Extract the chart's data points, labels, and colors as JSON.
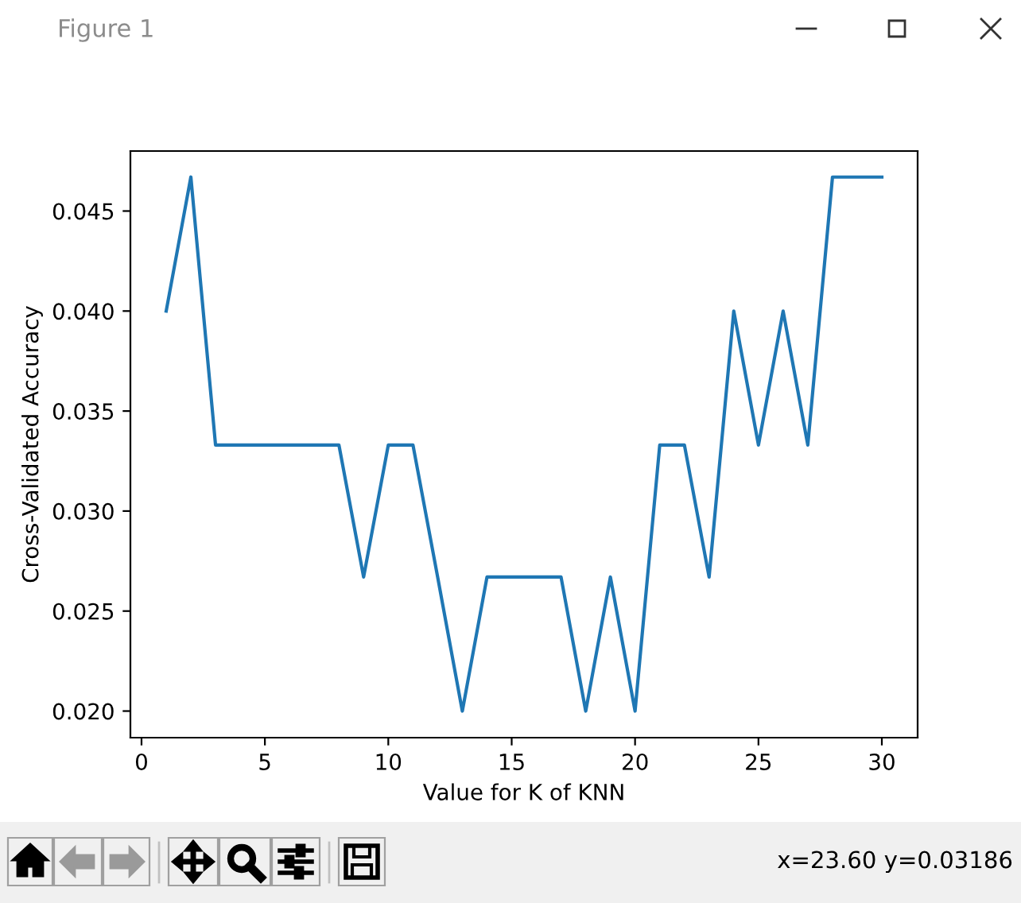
{
  "chart_data": {
    "type": "line",
    "title": "Figure 1",
    "xlabel": "Value for K of KNN",
    "ylabel": "Cross-Validated Accuracy",
    "annotations": [
      "x=23.60 y=0.03186"
    ],
    "x": [
      1,
      2,
      3,
      4,
      5,
      6,
      7,
      8,
      9,
      10,
      11,
      12,
      13,
      14,
      15,
      16,
      17,
      18,
      19,
      20,
      21,
      22,
      23,
      24,
      25,
      26,
      27,
      28,
      29,
      30
    ],
    "series": [
      {
        "color": "#1f77b4",
        "values": [
          0.04,
          0.0467,
          0.0333,
          0.0333,
          0.0333,
          0.0333,
          0.0333,
          0.0333,
          0.0267,
          0.0333,
          0.0333,
          0.0267,
          0.02,
          0.0267,
          0.0267,
          0.0267,
          0.0267,
          0.02,
          0.0267,
          0.02,
          0.0333,
          0.0333,
          0.0267,
          0.04,
          0.0333,
          0.04,
          0.0333,
          0.0467,
          0.0467,
          0.0467
        ]
      }
    ],
    "xlim": [
      -0.45,
      31.45
    ],
    "ylim": [
      0.01867,
      0.048
    ],
    "xticks": [
      0,
      5,
      10,
      15,
      20,
      25,
      30
    ],
    "yticks": [
      {
        "value": 0.02,
        "label": "0.020"
      },
      {
        "value": 0.025,
        "label": "0.025"
      },
      {
        "value": 0.03,
        "label": "0.030"
      },
      {
        "value": 0.035,
        "label": "0.035"
      },
      {
        "value": 0.04,
        "label": "0.040"
      },
      {
        "value": 0.045,
        "label": "0.045"
      }
    ]
  }
}
